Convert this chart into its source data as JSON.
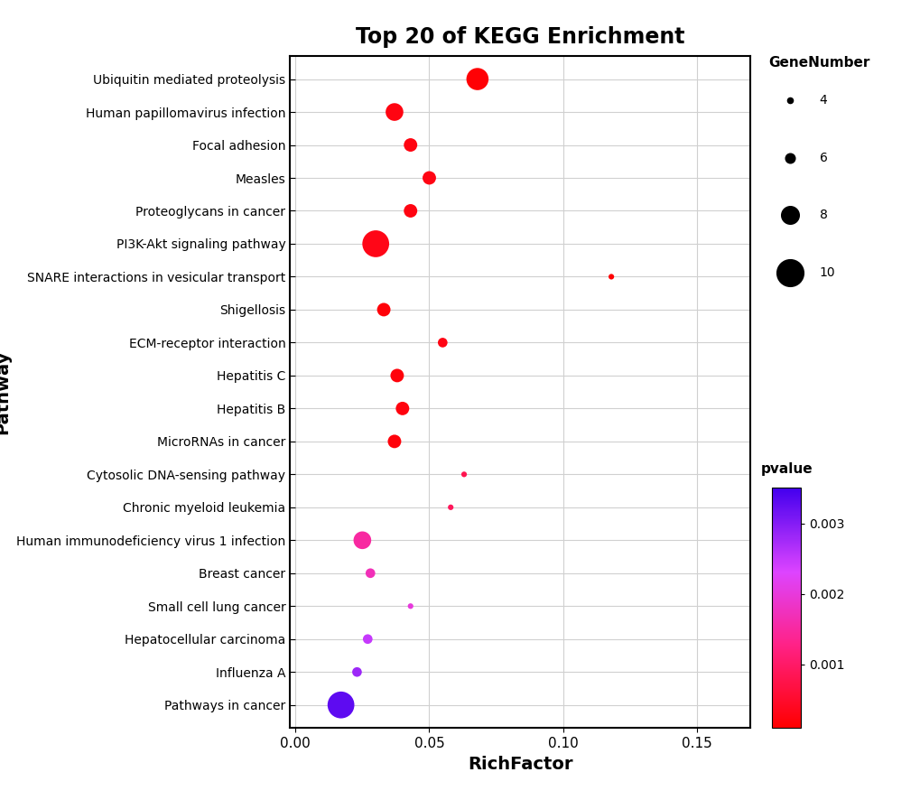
{
  "title": "Top 20 of KEGG Enrichment",
  "xlabel": "RichFactor",
  "ylabel": "Pathway",
  "pathways": [
    "Ubiquitin mediated proteolysis",
    "Human papillomavirus infection",
    "Focal adhesion",
    "Measles",
    "Proteoglycans in cancer",
    "PI3K-Akt signaling pathway",
    "SNARE interactions in vesicular transport",
    "Shigellosis",
    "ECM-receptor interaction",
    "Hepatitis C",
    "Hepatitis B",
    "MicroRNAs in cancer",
    "Cytosolic DNA-sensing pathway",
    "Chronic myeloid leukemia",
    "Human immunodeficiency virus 1 infection",
    "Breast cancer",
    "Small cell lung cancer",
    "Hepatocellular carcinoma",
    "Influenza A",
    "Pathways in cancer"
  ],
  "rich_factor": [
    0.068,
    0.037,
    0.043,
    0.05,
    0.043,
    0.03,
    0.118,
    0.033,
    0.055,
    0.038,
    0.04,
    0.037,
    0.063,
    0.058,
    0.025,
    0.028,
    0.043,
    0.027,
    0.023,
    0.017
  ],
  "gene_number": [
    9,
    8,
    7,
    7,
    7,
    10,
    4,
    7,
    6,
    7,
    7,
    7,
    4,
    4,
    8,
    6,
    4,
    6,
    6,
    10
  ],
  "pvalue": [
    0.00015,
    0.00025,
    0.00025,
    0.00028,
    0.00025,
    0.0003,
    0.00012,
    0.00018,
    0.00028,
    0.0002,
    0.00022,
    0.0002,
    0.0008,
    0.0009,
    0.0015,
    0.0017,
    0.002,
    0.0025,
    0.0028,
    0.0033
  ],
  "xlim": [
    -0.002,
    0.17
  ],
  "pvalue_vmin": 0.0001,
  "pvalue_vmax": 0.0035,
  "colorbar_ticks": [
    0.001,
    0.002,
    0.003
  ],
  "colorbar_ticklabels": [
    "0.001",
    "0.002",
    "0.003"
  ],
  "size_legend_values": [
    4,
    6,
    8,
    10
  ],
  "size_legend_sizes": [
    20,
    60,
    130,
    230
  ],
  "background_color": "#ffffff",
  "grid_color": "#d0d0d0",
  "title_fontsize": 17,
  "label_fontsize": 14,
  "tick_fontsize": 11,
  "ytick_fontsize": 10
}
